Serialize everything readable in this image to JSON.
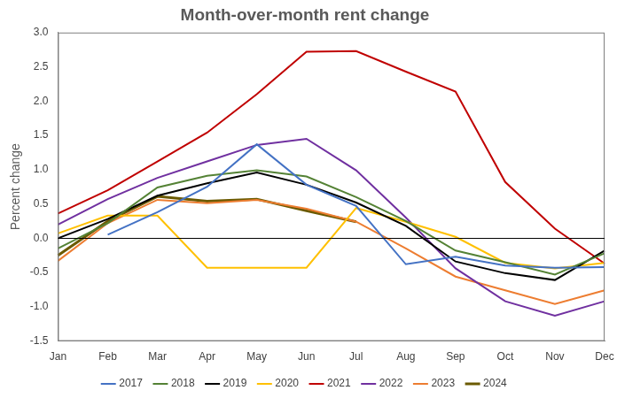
{
  "chart_data": {
    "type": "line",
    "title": "Month-over-month rent change",
    "y_label": "Percent change",
    "categories": [
      "Jan",
      "Feb",
      "Mar",
      "Apr",
      "May",
      "Jun",
      "Jul",
      "Aug",
      "Sep",
      "Oct",
      "Nov",
      "Dec"
    ],
    "series": [
      {
        "name": "2017",
        "color": "#4472c4",
        "values": [
          null,
          0.05,
          0.38,
          0.75,
          1.37,
          0.78,
          0.47,
          -0.38,
          -0.27,
          -0.4,
          -0.43,
          -0.42
        ]
      },
      {
        "name": "2018",
        "color": "#548235",
        "values": [
          -0.15,
          0.22,
          0.74,
          0.91,
          0.99,
          0.9,
          0.6,
          0.25,
          -0.18,
          -0.35,
          -0.53,
          -0.22
        ]
      },
      {
        "name": "2019",
        "color": "#000000",
        "values": [
          0.0,
          0.28,
          0.62,
          0.8,
          0.96,
          0.78,
          0.52,
          0.18,
          -0.34,
          -0.51,
          -0.61,
          -0.18
        ]
      },
      {
        "name": "2020",
        "color": "#ffc000",
        "values": [
          0.07,
          0.33,
          0.33,
          -0.43,
          -0.43,
          -0.43,
          0.44,
          0.24,
          0.02,
          -0.36,
          -0.44,
          -0.36
        ]
      },
      {
        "name": "2021",
        "color": "#c00000",
        "values": [
          0.36,
          0.7,
          1.12,
          1.54,
          2.1,
          2.72,
          2.73,
          2.43,
          2.14,
          0.82,
          0.14,
          -0.37
        ]
      },
      {
        "name": "2022",
        "color": "#7030a0",
        "values": [
          0.2,
          0.57,
          0.88,
          1.12,
          1.36,
          1.45,
          0.99,
          0.3,
          -0.44,
          -0.92,
          -1.13,
          -0.92
        ]
      },
      {
        "name": "2023",
        "color": "#ed7d31",
        "values": [
          -0.33,
          0.22,
          0.56,
          0.51,
          0.56,
          0.43,
          0.24,
          -0.15,
          -0.56,
          -0.76,
          -0.96,
          -0.76
        ]
      },
      {
        "name": "2024",
        "color": "#6b5a00",
        "values": [
          -0.25,
          0.25,
          0.61,
          0.54,
          0.57,
          0.4,
          0.24,
          null,
          null,
          null,
          null,
          null
        ]
      }
    ],
    "ylim": [
      -1.5,
      3.0
    ],
    "yticks": [
      -1.5,
      {
        "value": -1.0,
        "label": "-1.0"
      },
      -0.5,
      {
        "value": 0.0,
        "label": "0.0"
      },
      0.5,
      {
        "value": 1.0,
        "label": "1.0"
      },
      1.5,
      {
        "value": 2.0,
        "label": "2.0"
      },
      2.5,
      {
        "value": 3.0,
        "label": "3.0"
      }
    ],
    "grid": false,
    "legend": "bottom",
    "marker": "none"
  }
}
